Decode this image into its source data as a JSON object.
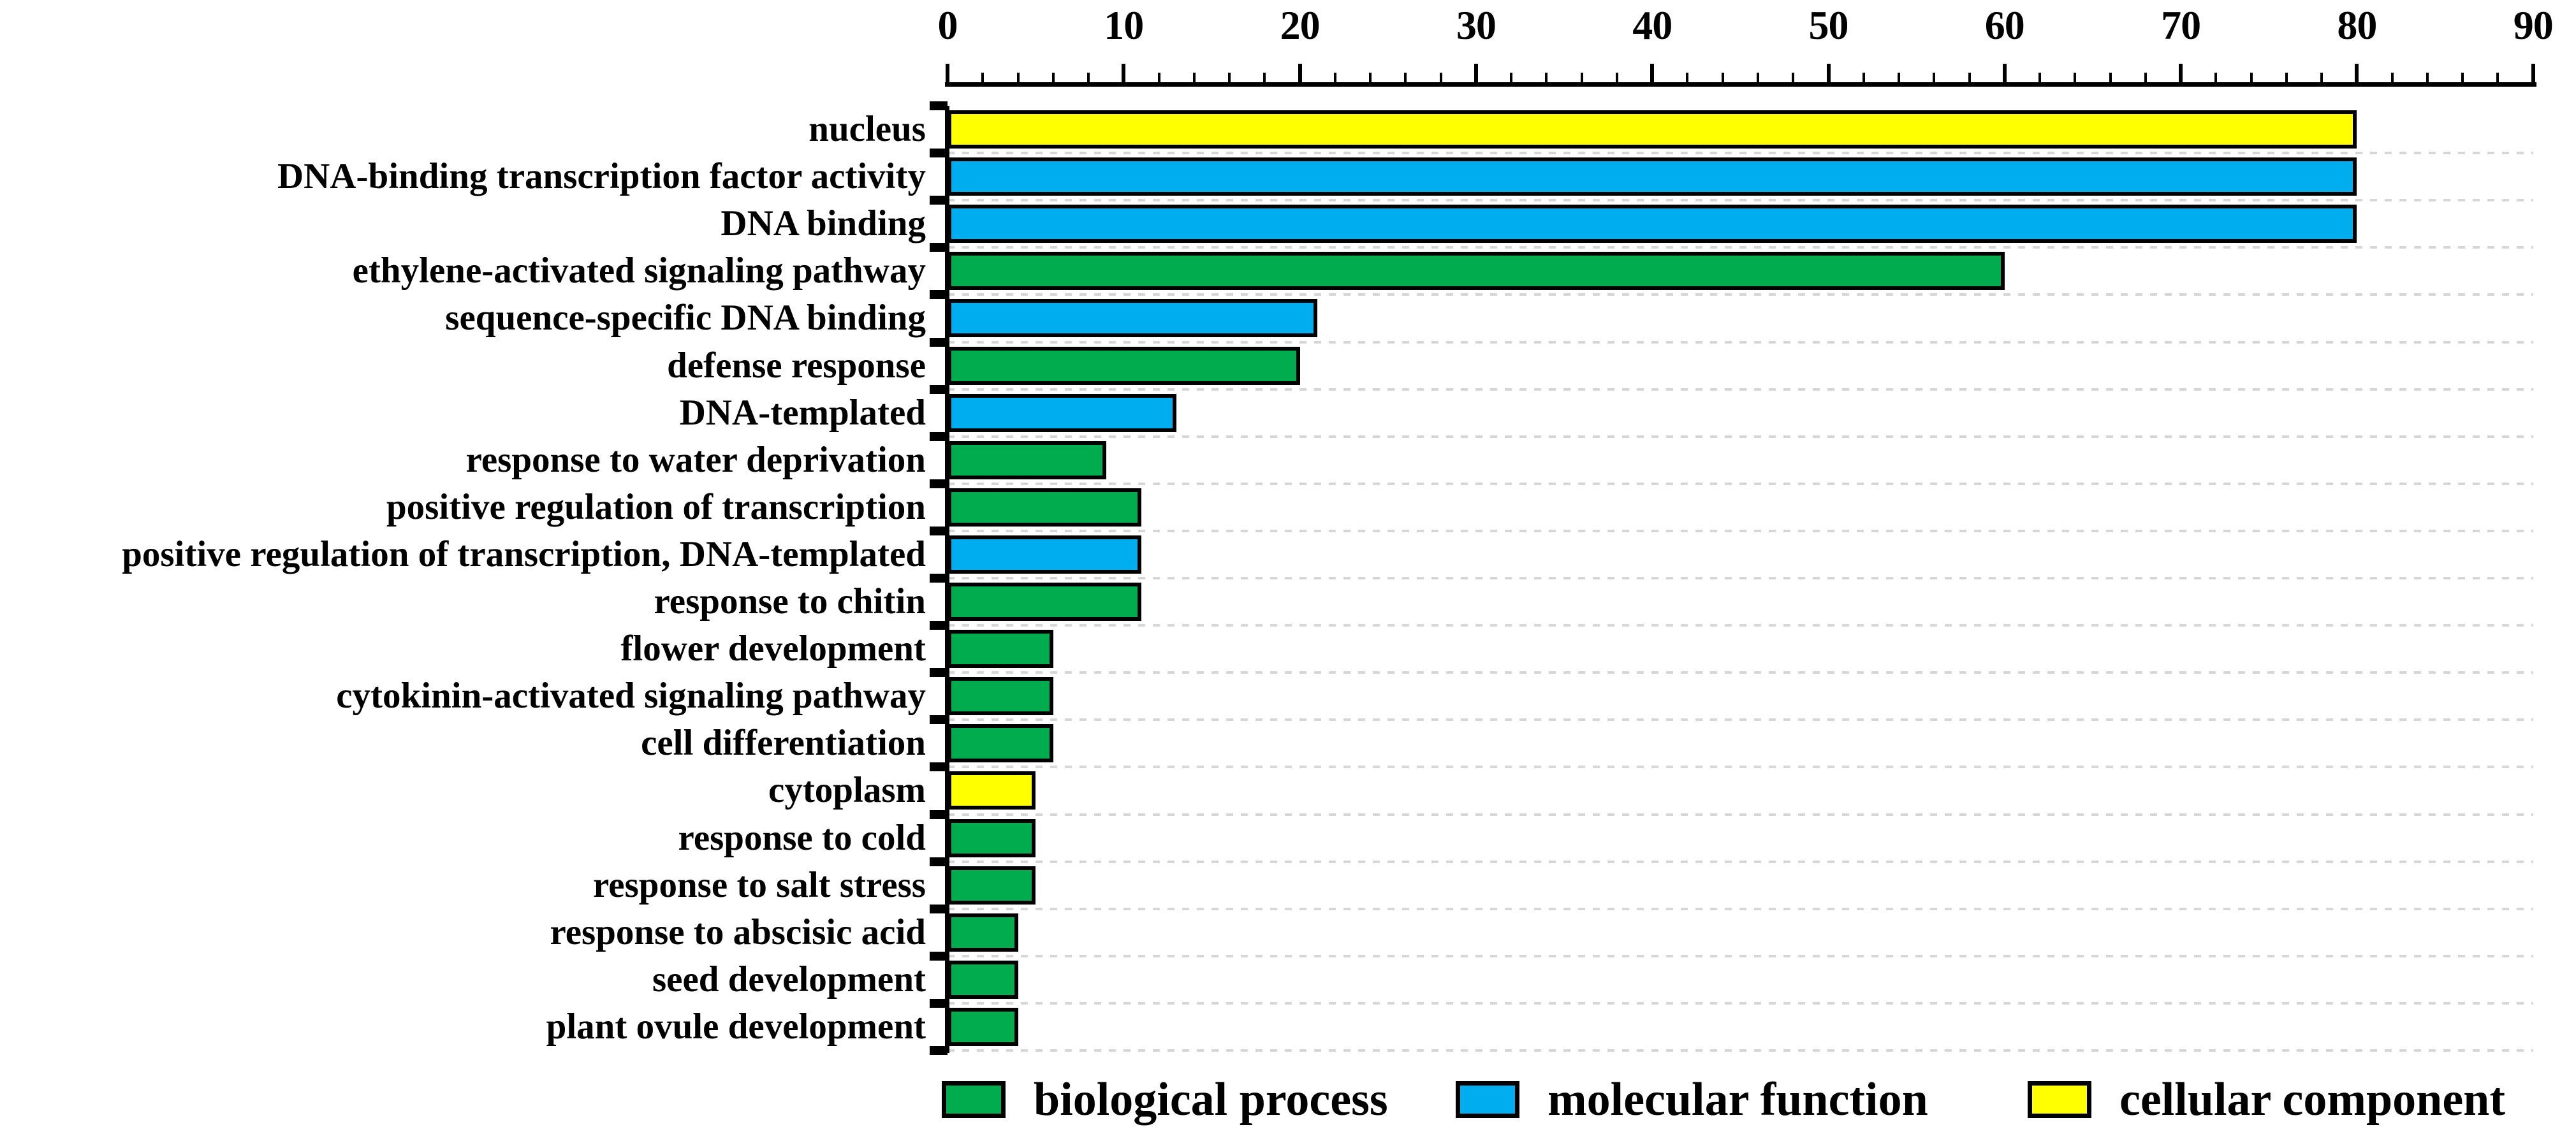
{
  "figure": {
    "background": "#FFFFFF"
  },
  "chart_data": {
    "type": "bar",
    "orientation": "horizontal",
    "title": "",
    "xlabel": "",
    "ylabel": "",
    "xlim": [
      0,
      90
    ],
    "x_major_ticks": [
      0,
      10,
      20,
      30,
      40,
      50,
      60,
      70,
      80,
      90
    ],
    "x_minor_tick_step": 2,
    "axis_position": "top",
    "grid": "dashed light-gray horizontal separators between category rows",
    "legend_position": "bottom",
    "groups": [
      {
        "name": "biological process",
        "color": "#00AC4E"
      },
      {
        "name": "molecular function",
        "color": "#00AEEF"
      },
      {
        "name": "cellular component",
        "color": "#FFFF00"
      }
    ],
    "categories": [
      {
        "label": "nucleus",
        "value": 80,
        "group": "cellular component"
      },
      {
        "label": "DNA-binding transcription factor activity",
        "value": 80,
        "group": "molecular function"
      },
      {
        "label": "DNA binding",
        "value": 80,
        "group": "molecular function"
      },
      {
        "label": "ethylene-activated signaling pathway",
        "value": 60,
        "group": "biological process"
      },
      {
        "label": "sequence-specific DNA binding",
        "value": 21,
        "group": "molecular function"
      },
      {
        "label": "defense response",
        "value": 20,
        "group": "biological process"
      },
      {
        "label": "DNA-templated",
        "value": 13,
        "group": "molecular function"
      },
      {
        "label": "response to water deprivation",
        "value": 9,
        "group": "biological process"
      },
      {
        "label": "positive regulation of transcription",
        "value": 11,
        "group": "biological process"
      },
      {
        "label": "positive regulation of transcription, DNA-templated",
        "value": 11,
        "group": "molecular function"
      },
      {
        "label": "response to chitin",
        "value": 11,
        "group": "biological process"
      },
      {
        "label": "flower development",
        "value": 6,
        "group": "biological process"
      },
      {
        "label": "cytokinin-activated signaling pathway",
        "value": 6,
        "group": "biological process"
      },
      {
        "label": "cell differentiation",
        "value": 6,
        "group": "biological process"
      },
      {
        "label": "cytoplasm",
        "value": 5,
        "group": "cellular component"
      },
      {
        "label": "response to cold",
        "value": 5,
        "group": "biological process"
      },
      {
        "label": "response to salt stress",
        "value": 5,
        "group": "biological process"
      },
      {
        "label": "response to abscisic acid",
        "value": 4,
        "group": "biological process"
      },
      {
        "label": "seed development",
        "value": 4,
        "group": "biological process"
      },
      {
        "label": "plant ovule development",
        "value": 4,
        "group": "biological process"
      }
    ]
  },
  "colors": {
    "axis": "#000000",
    "gridline": "#D6D6D6",
    "text": "#000000"
  }
}
